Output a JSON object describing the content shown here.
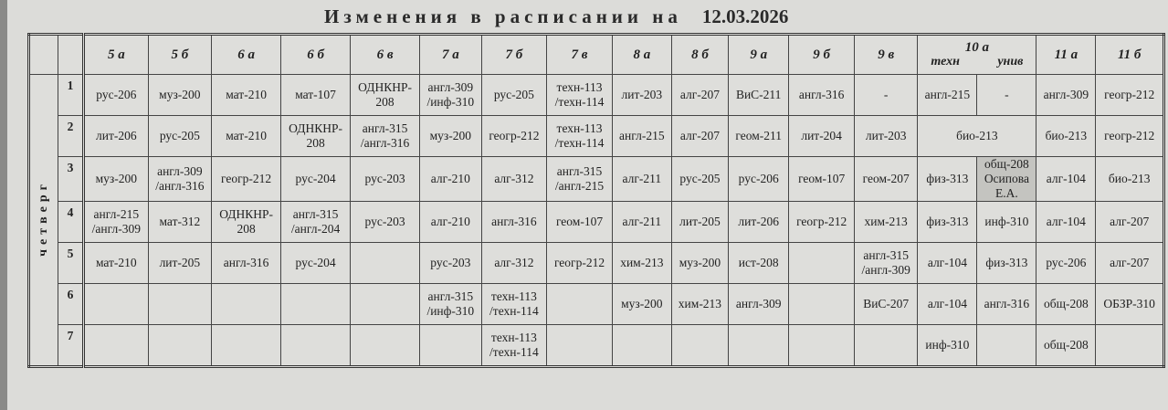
{
  "title": {
    "text": "Изменения в расписании на",
    "date": "12.03.2026"
  },
  "day": "четверг",
  "classes": [
    "5 а",
    "5 б",
    "6 а",
    "6 б",
    "6 в",
    "7 а",
    "7 б",
    "7 в",
    "8 а",
    "8 б",
    "9 а",
    "9 б",
    "9 в",
    "10 а",
    "11 а",
    "11 б"
  ],
  "class_10a_groups": [
    "техн",
    "унив"
  ],
  "rows": [
    {
      "num": "1",
      "cells": [
        "рус-206",
        "муз-200",
        "мат-210",
        "мат-107",
        "ОДНКНР-\n208",
        "англ-309\n/инф-310",
        "рус-205",
        "техн-113\n/техн-114",
        "лит-203",
        "алг-207",
        "ВиС-211",
        "англ-316",
        "-",
        "англ-215",
        "-",
        "англ-309",
        "геогр-212"
      ]
    },
    {
      "num": "2",
      "cells": [
        "лит-206",
        "рус-205",
        "мат-210",
        "ОДНКНР-\n208",
        "англ-315\n/англ-316",
        "муз-200",
        "геогр-212",
        "техн-113\n/техн-114",
        "англ-215",
        "алг-207",
        "геом-211",
        "лит-204",
        "лит-203",
        {
          "text": "био-213",
          "span": 2
        },
        "био-213",
        "геогр-212"
      ]
    },
    {
      "num": "3",
      "cells": [
        "муз-200",
        "англ-309\n/англ-316",
        "геогр-212",
        "рус-204",
        "рус-203",
        "алг-210",
        "алг-312",
        "англ-315\n/англ-215",
        "алг-211",
        "рус-205",
        "рус-206",
        "геом-107",
        "геом-207",
        "физ-313",
        {
          "text": "общ-208\nОсипова\nЕ.А.",
          "shaded": true
        },
        "алг-104",
        "био-213"
      ]
    },
    {
      "num": "4",
      "cells": [
        "англ-215\n/англ-309",
        "мат-312",
        "ОДНКНР-\n208",
        "англ-315\n/англ-204",
        "рус-203",
        "алг-210",
        "англ-316",
        "геом-107",
        "алг-211",
        "лит-205",
        "лит-206",
        "геогр-212",
        "хим-213",
        "физ-313",
        "инф-310",
        "алг-104",
        "алг-207"
      ]
    },
    {
      "num": "5",
      "cells": [
        "мат-210",
        "лит-205",
        "англ-316",
        "рус-204",
        "",
        "рус-203",
        "алг-312",
        "геогр-212",
        "хим-213",
        "муз-200",
        "ист-208",
        "",
        "англ-315\n/англ-309",
        "алг-104",
        "физ-313",
        "рус-206",
        "алг-207"
      ]
    },
    {
      "num": "6",
      "cells": [
        "",
        "",
        "",
        "",
        "",
        "англ-315\n/инф-310",
        "техн-113\n/техн-114",
        "",
        "муз-200",
        "хим-213",
        "англ-309",
        "",
        "ВиС-207",
        "алг-104",
        "англ-316",
        "общ-208",
        "ОБЗР-310"
      ]
    },
    {
      "num": "7",
      "cells": [
        "",
        "",
        "",
        "",
        "",
        "",
        "техн-113\n/техн-114",
        "",
        "",
        "",
        "",
        "",
        "",
        "инф-310",
        "",
        "общ-208",
        ""
      ]
    }
  ]
}
